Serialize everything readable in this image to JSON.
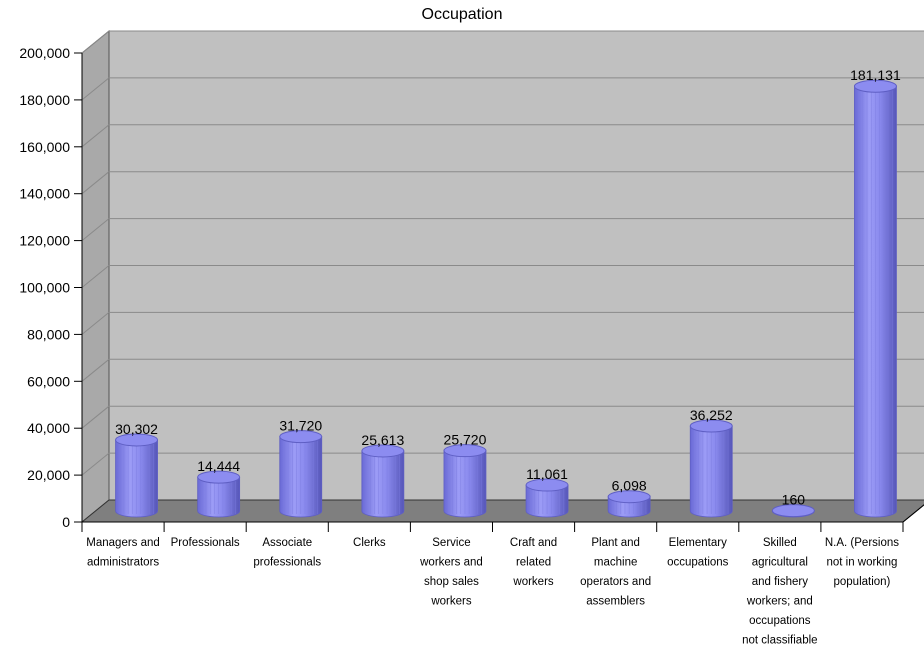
{
  "chart_data": {
    "type": "bar",
    "title": "Occupation",
    "xlabel": "",
    "ylabel": "",
    "ylim": [
      0,
      200000
    ],
    "yticks": [
      0,
      20000,
      40000,
      60000,
      80000,
      100000,
      120000,
      140000,
      160000,
      180000,
      200000
    ],
    "ytick_labels": [
      "0",
      "20,000",
      "40,000",
      "60,000",
      "80,000",
      "100,000",
      "120,000",
      "140,000",
      "160,000",
      "180,000",
      "200,000"
    ],
    "grid": true,
    "legend": "none",
    "bar_style": "3d-cylinder",
    "colors": {
      "bar": "#8c8cf0",
      "bar_dark": "#5f5fc4",
      "bar_light": "#c6c6fb",
      "wall": "#c0c0c0",
      "floor": "#7f7f7f",
      "gridline": "#8a8a8a"
    },
    "categories": [
      [
        "Managers and",
        "administrators"
      ],
      [
        "Professionals"
      ],
      [
        "Associate",
        "professionals"
      ],
      [
        "Clerks"
      ],
      [
        "Service",
        "workers and",
        "shop sales",
        "workers"
      ],
      [
        "Craft and",
        "related",
        "workers"
      ],
      [
        "Plant and",
        "machine",
        "operators and",
        "assemblers"
      ],
      [
        "Elementary",
        "occupations"
      ],
      [
        "Skilled",
        "agricultural",
        "and fishery",
        "workers; and",
        "occupations",
        "not classifiable"
      ],
      [
        "N.A. (Persions",
        "not in working",
        "population)"
      ]
    ],
    "values": [
      30302,
      14444,
      31720,
      25613,
      25720,
      11061,
      6098,
      36252,
      160,
      181131
    ],
    "value_labels": [
      "30,302",
      "14,444",
      "31,720",
      "25,613",
      "25,720",
      "11,061",
      "6,098",
      "36,252",
      "160",
      "181,131"
    ]
  }
}
